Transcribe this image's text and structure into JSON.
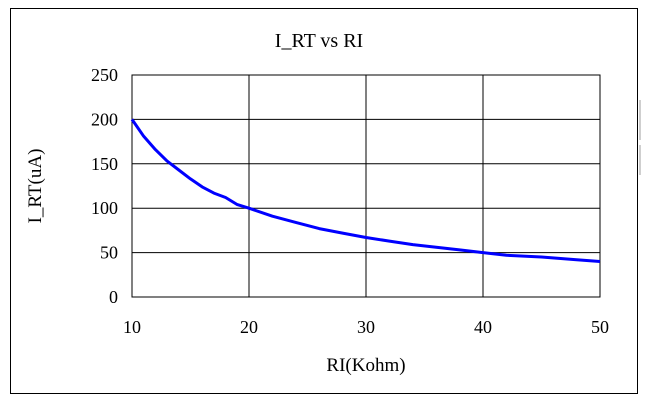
{
  "chart_data": {
    "type": "line",
    "title": "I_RT vs RI",
    "xlabel": "RI(Kohm)",
    "ylabel": "I_RT(uA)",
    "xlim": [
      10,
      50
    ],
    "ylim": [
      0,
      250
    ],
    "x_ticks": [
      "10",
      "20",
      "30",
      "40",
      "50"
    ],
    "y_ticks": [
      "0",
      "50",
      "100",
      "150",
      "200",
      "250"
    ],
    "grid": true,
    "legend": "none",
    "series": [
      {
        "color": "#0000ff",
        "x": [
          10,
          11,
          12,
          13,
          14,
          15,
          16,
          17,
          18,
          19,
          20,
          22,
          24,
          26,
          28,
          30,
          32,
          34,
          36,
          38,
          40,
          42,
          45,
          48,
          50
        ],
        "y": [
          200,
          181,
          166,
          153,
          143,
          133,
          124,
          117,
          112,
          104,
          100,
          91,
          84,
          77,
          72,
          67,
          63,
          59,
          56,
          53,
          50,
          47,
          45,
          42,
          40
        ]
      }
    ]
  }
}
